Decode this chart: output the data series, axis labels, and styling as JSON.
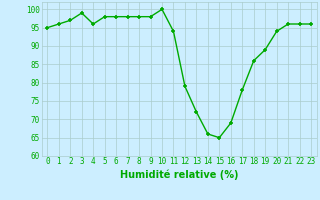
{
  "x": [
    0,
    1,
    2,
    3,
    4,
    5,
    6,
    7,
    8,
    9,
    10,
    11,
    12,
    13,
    14,
    15,
    16,
    17,
    18,
    19,
    20,
    21,
    22,
    23
  ],
  "y": [
    95,
    96,
    97,
    99,
    96,
    98,
    98,
    98,
    98,
    98,
    100,
    94,
    79,
    72,
    66,
    65,
    69,
    78,
    86,
    89,
    94,
    96,
    96,
    96
  ],
  "line_color": "#00aa00",
  "marker_color": "#00aa00",
  "bg_color": "#cceeff",
  "grid_color": "#aacccc",
  "xlabel": "Humidité relative (%)",
  "ylim": [
    60,
    102
  ],
  "xlim": [
    -0.5,
    23.5
  ],
  "yticks": [
    60,
    65,
    70,
    75,
    80,
    85,
    90,
    95,
    100
  ],
  "xticks": [
    0,
    1,
    2,
    3,
    4,
    5,
    6,
    7,
    8,
    9,
    10,
    11,
    12,
    13,
    14,
    15,
    16,
    17,
    18,
    19,
    20,
    21,
    22,
    23
  ],
  "tick_label_size": 5.5,
  "xlabel_size": 7,
  "marker_size": 3.5,
  "line_width": 1.0
}
